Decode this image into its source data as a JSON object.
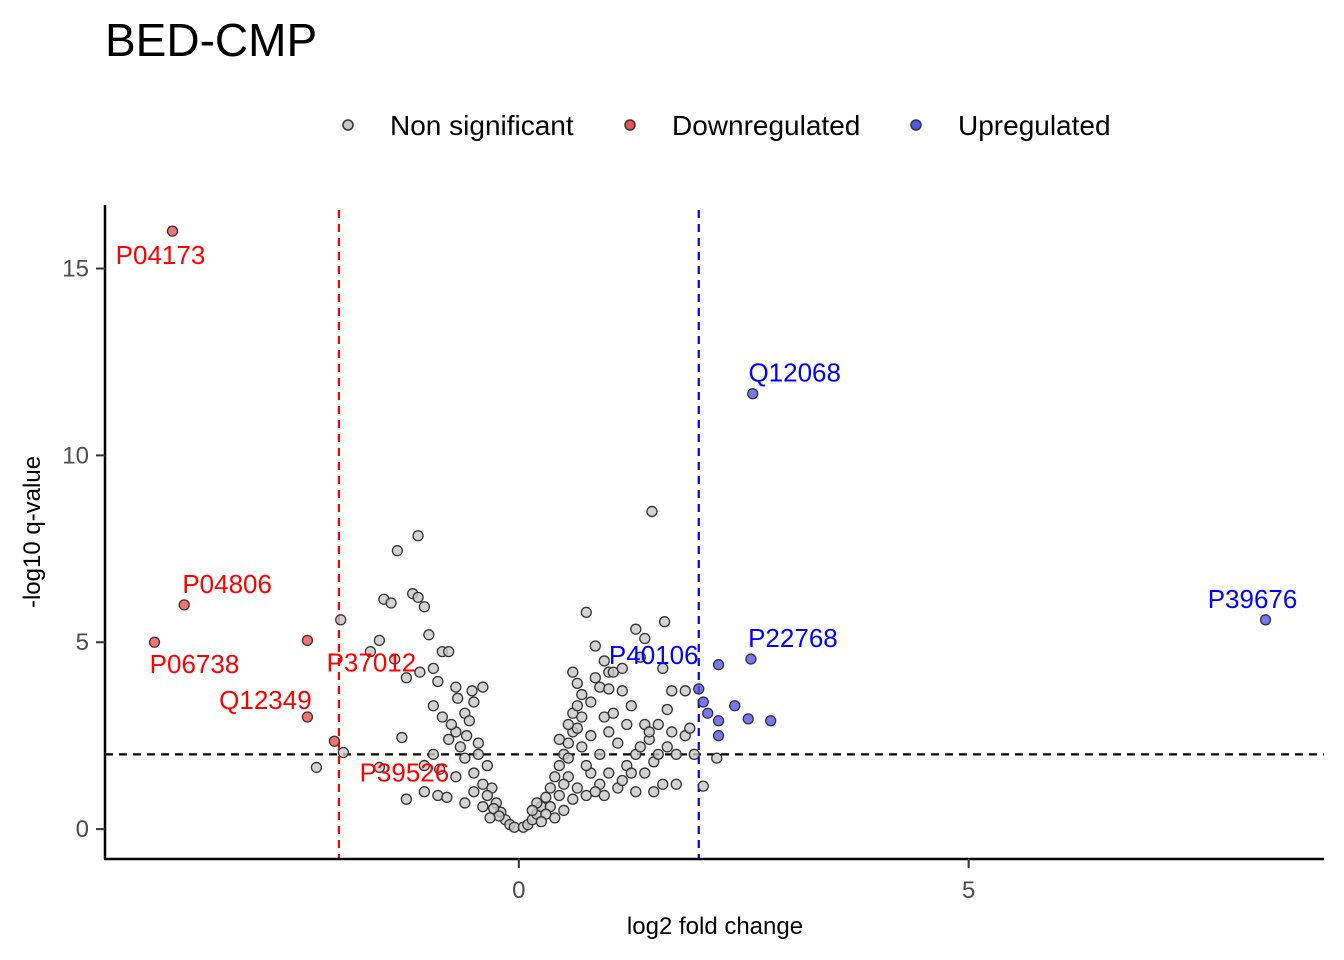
{
  "chart_data": {
    "type": "scatter",
    "title": "BED-CMP",
    "xlabel": "log2 fold change",
    "ylabel": "-log10 q-value",
    "xlim": [
      -4.6,
      8.95
    ],
    "ylim": [
      -0.8,
      16.7
    ],
    "xticks": [
      0,
      5
    ],
    "yticks": [
      0,
      5,
      10,
      15
    ],
    "grid": false,
    "legend_position": "top",
    "thresholds": {
      "fold_change_low": -2,
      "fold_change_high": 2,
      "q_value": 2,
      "colors": {
        "low": "#ff0000",
        "high": "#0000ff",
        "q": "#000000"
      }
    },
    "series": [
      {
        "name": "Non significant",
        "color": "#c8c8c8",
        "points": [
          [
            -1.35,
            7.45
          ],
          [
            -1.12,
            7.85
          ],
          [
            -1.5,
            6.15
          ],
          [
            -1.42,
            6.05
          ],
          [
            -1.18,
            6.3
          ],
          [
            -1.12,
            6.2
          ],
          [
            -1.05,
            5.95
          ],
          [
            -1.98,
            5.6
          ],
          [
            -1.65,
            4.75
          ],
          [
            -1.38,
            4.55
          ],
          [
            -1.55,
            5.05
          ],
          [
            -1.0,
            5.2
          ],
          [
            -0.85,
            4.75
          ],
          [
            -0.78,
            4.75
          ],
          [
            -1.1,
            4.2
          ],
          [
            -0.95,
            4.3
          ],
          [
            -1.25,
            4.05
          ],
          [
            -0.9,
            3.95
          ],
          [
            -0.7,
            3.8
          ],
          [
            -0.4,
            3.8
          ],
          [
            -2.25,
            1.65
          ],
          [
            -1.95,
            2.05
          ],
          [
            -1.55,
            1.65
          ],
          [
            -1.3,
            2.45
          ],
          [
            -1.25,
            0.8
          ],
          [
            -1.05,
            1.0
          ],
          [
            -0.9,
            0.9
          ],
          [
            -0.8,
            0.85
          ],
          [
            -0.95,
            3.3
          ],
          [
            -0.6,
            3.1
          ],
          [
            -0.5,
            3.4
          ],
          [
            -0.7,
            2.6
          ],
          [
            -0.45,
            2.3
          ],
          [
            -0.35,
            1.7
          ],
          [
            -0.3,
            1.1
          ],
          [
            -0.25,
            0.7
          ],
          [
            -0.2,
            0.45
          ],
          [
            -0.15,
            0.25
          ],
          [
            -0.1,
            0.12
          ],
          [
            -0.05,
            0.05
          ],
          [
            -0.6,
            1.9
          ],
          [
            -0.5,
            1.5
          ],
          [
            -0.4,
            1.2
          ],
          [
            -0.65,
            2.2
          ],
          [
            -0.75,
            2.8
          ],
          [
            -0.85,
            3.0
          ],
          [
            -0.55,
            2.9
          ],
          [
            -0.45,
            2.0
          ],
          [
            -0.35,
            0.9
          ],
          [
            -0.28,
            0.55
          ],
          [
            -0.22,
            0.35
          ],
          [
            -0.7,
            1.4
          ],
          [
            -0.6,
            0.7
          ],
          [
            -0.5,
            1.0
          ],
          [
            -0.4,
            0.6
          ],
          [
            -0.32,
            0.3
          ],
          [
            -0.95,
            2.0
          ],
          [
            -0.88,
            1.6
          ],
          [
            -1.05,
            1.7
          ],
          [
            -0.78,
            2.4
          ],
          [
            -0.68,
            3.5
          ],
          [
            -0.58,
            2.5
          ],
          [
            -0.52,
            3.7
          ],
          [
            0.05,
            0.05
          ],
          [
            0.1,
            0.12
          ],
          [
            0.15,
            0.25
          ],
          [
            0.2,
            0.4
          ],
          [
            0.25,
            0.6
          ],
          [
            0.3,
            0.85
          ],
          [
            0.35,
            1.1
          ],
          [
            0.4,
            1.4
          ],
          [
            0.45,
            1.7
          ],
          [
            0.5,
            2.0
          ],
          [
            0.55,
            2.3
          ],
          [
            0.6,
            2.6
          ],
          [
            0.7,
            3.0
          ],
          [
            0.8,
            3.4
          ],
          [
            0.9,
            3.8
          ],
          [
            1.0,
            4.2
          ],
          [
            0.75,
            5.8
          ],
          [
            0.85,
            4.9
          ],
          [
            0.95,
            4.5
          ],
          [
            1.05,
            4.2
          ],
          [
            1.15,
            4.3
          ],
          [
            1.3,
            5.35
          ],
          [
            1.4,
            5.1
          ],
          [
            1.35,
            4.6
          ],
          [
            1.6,
            4.3
          ],
          [
            1.62,
            5.55
          ],
          [
            1.48,
            8.5
          ],
          [
            1.7,
            3.7
          ],
          [
            1.85,
            3.7
          ],
          [
            0.6,
            4.2
          ],
          [
            0.65,
            3.9
          ],
          [
            0.6,
            3.1
          ],
          [
            0.7,
            3.6
          ],
          [
            0.85,
            4.05
          ],
          [
            1.0,
            3.75
          ],
          [
            1.15,
            3.7
          ],
          [
            1.25,
            3.3
          ],
          [
            1.4,
            2.8
          ],
          [
            1.55,
            2.8
          ],
          [
            1.7,
            2.6
          ],
          [
            1.85,
            2.5
          ],
          [
            1.65,
            3.2
          ],
          [
            1.45,
            2.4
          ],
          [
            1.3,
            2.0
          ],
          [
            1.5,
            1.8
          ],
          [
            1.4,
            1.5
          ],
          [
            1.6,
            1.2
          ],
          [
            1.75,
            1.2
          ],
          [
            1.5,
            1.0
          ],
          [
            2.2,
            1.9
          ],
          [
            2.05,
            1.15
          ],
          [
            0.55,
            1.4
          ],
          [
            0.65,
            1.1
          ],
          [
            0.75,
            0.9
          ],
          [
            0.8,
            1.5
          ],
          [
            0.9,
            1.2
          ],
          [
            1.0,
            1.5
          ],
          [
            1.1,
            1.1
          ],
          [
            1.2,
            1.7
          ],
          [
            0.45,
            0.9
          ],
          [
            0.35,
            0.6
          ],
          [
            0.5,
            0.5
          ],
          [
            0.6,
            0.8
          ],
          [
            0.7,
            2.2
          ],
          [
            0.8,
            2.5
          ],
          [
            0.9,
            2.0
          ],
          [
            1.0,
            2.6
          ],
          [
            1.1,
            2.3
          ],
          [
            1.2,
            2.8
          ],
          [
            0.95,
            3.0
          ],
          [
            1.05,
            3.1
          ],
          [
            0.55,
            1.9
          ],
          [
            0.65,
            2.7
          ],
          [
            0.75,
            1.7
          ],
          [
            0.85,
            1.0
          ],
          [
            0.95,
            0.9
          ],
          [
            1.15,
            1.3
          ],
          [
            1.25,
            1.5
          ],
          [
            0.4,
            0.3
          ],
          [
            0.3,
            0.4
          ],
          [
            0.25,
            0.2
          ],
          [
            0.2,
            0.7
          ],
          [
            0.15,
            0.5
          ],
          [
            0.5,
            1.2
          ],
          [
            0.45,
            2.4
          ],
          [
            0.55,
            2.8
          ],
          [
            0.65,
            3.3
          ],
          [
            1.3,
            1.0
          ],
          [
            1.35,
            2.2
          ],
          [
            1.45,
            2.6
          ],
          [
            1.55,
            2.0
          ],
          [
            1.65,
            2.2
          ],
          [
            1.75,
            2.0
          ],
          [
            1.9,
            2.7
          ],
          [
            1.95,
            2.0
          ]
        ]
      },
      {
        "name": "Downregulated",
        "color": "#f05050",
        "points": [
          [
            -3.85,
            16.0
          ],
          [
            -3.72,
            6.0
          ],
          [
            -4.05,
            5.0
          ],
          [
            -2.35,
            5.05
          ],
          [
            -2.35,
            3.0
          ],
          [
            -2.05,
            2.35
          ]
        ]
      },
      {
        "name": "Upregulated",
        "color": "#5555ee",
        "points": [
          [
            2.6,
            11.65
          ],
          [
            8.3,
            5.6
          ],
          [
            2.58,
            4.55
          ],
          [
            2.22,
            4.4
          ],
          [
            2.0,
            3.75
          ],
          [
            2.05,
            3.4
          ],
          [
            2.1,
            3.1
          ],
          [
            2.4,
            3.3
          ],
          [
            2.22,
            2.9
          ],
          [
            2.55,
            2.95
          ],
          [
            2.8,
            2.9
          ],
          [
            2.22,
            2.5
          ]
        ]
      }
    ],
    "annotations": [
      {
        "text": "P04173",
        "x": -3.85,
        "y": 16.0,
        "color": "#ff0000"
      },
      {
        "text": "P04806",
        "x": -3.72,
        "y": 6.0,
        "color": "#ff0000"
      },
      {
        "text": "P06738",
        "x": -4.05,
        "y": 5.0,
        "color": "#ff0000"
      },
      {
        "text": "Q12349",
        "x": -2.35,
        "y": 3.0,
        "color": "#ff0000"
      },
      {
        "text": "P37012",
        "x": -2.35,
        "y": 5.05,
        "color": "#ff0000"
      },
      {
        "text": "P39526",
        "x": -2.05,
        "y": 2.35,
        "color": "#ff0000"
      },
      {
        "text": "Q12068",
        "x": 2.6,
        "y": 11.65,
        "color": "#0000ff"
      },
      {
        "text": "P39676",
        "x": 8.3,
        "y": 5.6,
        "color": "#0000ff"
      },
      {
        "text": "P22768",
        "x": 2.58,
        "y": 4.55,
        "color": "#0000ff"
      },
      {
        "text": "P40106",
        "x": 2.0,
        "y": 3.75,
        "color": "#0000ff"
      }
    ]
  }
}
